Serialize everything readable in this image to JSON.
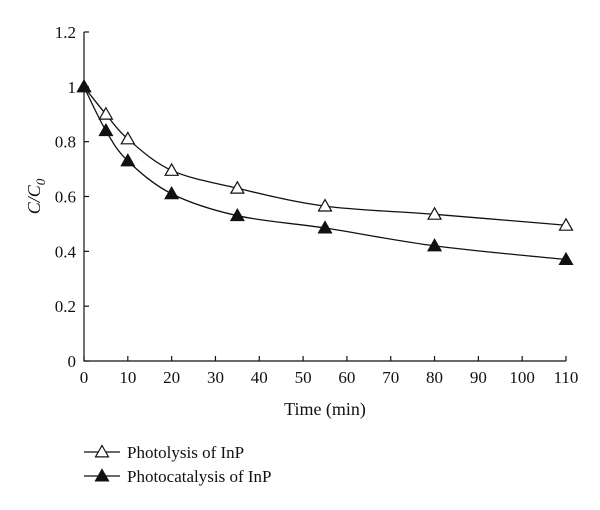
{
  "chart_data": {
    "type": "line",
    "xlabel": "Time (min)",
    "ylabel": {
      "main": "C/C",
      "sub": "0"
    },
    "xlim": [
      0,
      110
    ],
    "ylim": [
      0,
      1.2
    ],
    "x_ticks": [
      0,
      10,
      20,
      30,
      40,
      50,
      60,
      70,
      80,
      90,
      100,
      110
    ],
    "y_ticks": [
      0,
      0.2,
      0.4,
      0.6,
      0.8,
      1,
      1.2
    ],
    "grid": false,
    "legend_position": "bottom-left",
    "series": [
      {
        "name": "Photolysis of InP",
        "marker": "open-triangle",
        "x": [
          0,
          5,
          10,
          20,
          35,
          55,
          80,
          110
        ],
        "y": [
          1.0,
          0.9,
          0.81,
          0.695,
          0.63,
          0.565,
          0.535,
          0.495
        ]
      },
      {
        "name": "Photocatalysis of InP",
        "marker": "filled-triangle",
        "x": [
          0,
          5,
          10,
          20,
          35,
          55,
          80,
          110
        ],
        "y": [
          1.0,
          0.84,
          0.73,
          0.61,
          0.53,
          0.485,
          0.42,
          0.37
        ]
      }
    ]
  }
}
